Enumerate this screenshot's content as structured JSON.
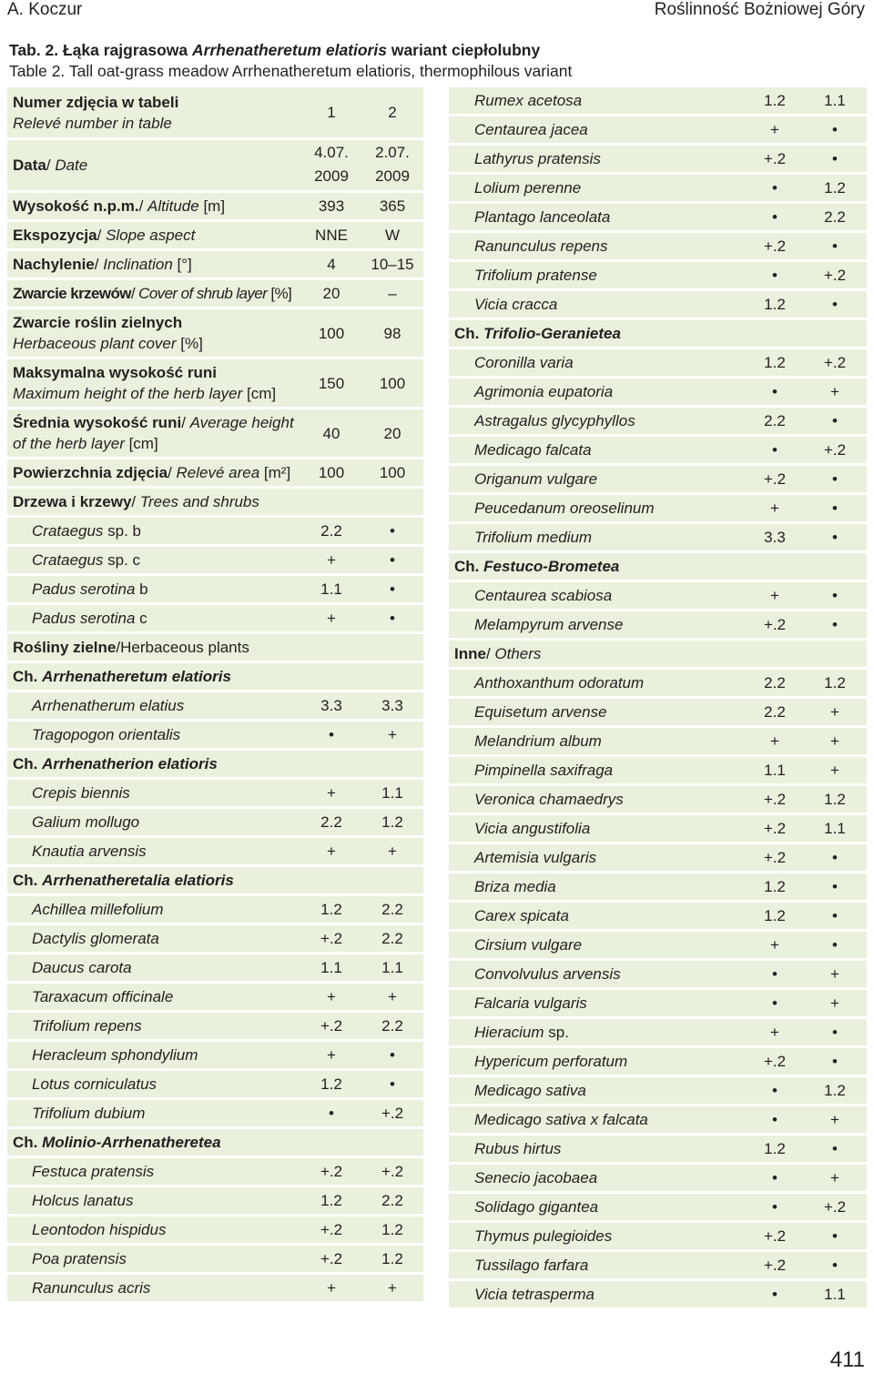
{
  "header": {
    "author": "A. Koczur",
    "journal": "Roślinność Bożniowej Góry"
  },
  "caption": {
    "pl_prefix": "Tab. 2. Łąka rajgrasowa ",
    "pl_species": "Arrhenatheretum elatioris",
    "pl_suffix": " wariant ciepłolubny",
    "en": "Table 2. Tall oat-grass meadow Arrhenatheretum elatioris, thermophilous variant"
  },
  "left": {
    "relevé": {
      "pl": "Numer zdjęcia w tabeli",
      "en": "Relevé number in table",
      "v1": "1",
      "v2": "2"
    },
    "date": {
      "pl": "Data",
      "en": "Date",
      "d1a": "4.07.",
      "d2a": "2.07.",
      "d1b": "2009",
      "d2b": "2009"
    },
    "altitude": {
      "pl": "Wysokość n.p.m.",
      "en": "Altitude",
      "unit": " [m]",
      "v1": "393",
      "v2": "365"
    },
    "aspect": {
      "pl": "Ekspozycja",
      "en": "Slope aspect",
      "v1": "NNE",
      "v2": "W"
    },
    "inclination": {
      "pl": "Nachylenie",
      "en": "Inclination",
      "unit": " [°]",
      "v1": "4",
      "v2": "10–15"
    },
    "shrub": {
      "pl": "Zwarcie krzewów",
      "en": "Cover of shrub layer",
      "unit": " [%]",
      "v1": "20",
      "v2": "–"
    },
    "herb_cover": {
      "pl": "Zwarcie roślin zielnych",
      "en": "Herbaceous plant cover",
      "unit": " [%]",
      "v1": "100",
      "v2": "98"
    },
    "max_height": {
      "pl": "Maksymalna wysokość runi",
      "en": "Maximum height of the herb layer",
      "unit": " [cm]",
      "v1": "150",
      "v2": "100"
    },
    "avg_height": {
      "pl": "Średnia wysokość runi",
      "en1": "Average height",
      "en2": "of the herb layer",
      "unit": " [cm]",
      "v1": "40",
      "v2": "20"
    },
    "area": {
      "pl": "Powierzchnia zdjęcia",
      "en": "Relevé area",
      "unit": " [m²]",
      "v1": "100",
      "v2": "100"
    },
    "trees": {
      "pl": "Drzewa i krzewy",
      "en": "Trees and shrubs"
    },
    "tree_species": [
      {
        "name": "Crataegus",
        "suffix": " sp. b",
        "v1": "2.2",
        "v2": "•"
      },
      {
        "name": "Crataegus",
        "suffix": " sp. c",
        "v1": "+",
        "v2": "•"
      },
      {
        "name": "Padus serotina",
        "suffix": " b",
        "v1": "1.1",
        "v2": "•"
      },
      {
        "name": "Padus serotina",
        "suffix": " c",
        "v1": "+",
        "v2": "•"
      }
    ],
    "herbaceous": {
      "pl": "Rośliny zielne",
      "en": "Herbaceous plants"
    },
    "groups": [
      {
        "prefix": "Ch. ",
        "name": "Arrhenatheretum elatioris",
        "species": [
          {
            "name": "Arrhenatherum elatius",
            "v1": "3.3",
            "v2": "3.3"
          },
          {
            "name": "Tragopogon orientalis",
            "v1": "•",
            "v2": "+"
          }
        ]
      },
      {
        "prefix": "Ch. ",
        "name": "Arrhenatherion elatioris",
        "species": [
          {
            "name": "Crepis biennis",
            "v1": "+",
            "v2": "1.1"
          },
          {
            "name": "Galium mollugo",
            "v1": "2.2",
            "v2": "1.2"
          },
          {
            "name": "Knautia arvensis",
            "v1": "+",
            "v2": "+"
          }
        ]
      },
      {
        "prefix": "Ch. ",
        "name": "Arrhenatheretalia elatioris",
        "species": [
          {
            "name": "Achillea millefolium",
            "v1": "1.2",
            "v2": "2.2"
          },
          {
            "name": "Dactylis glomerata",
            "v1": "+.2",
            "v2": "2.2"
          },
          {
            "name": "Daucus carota",
            "v1": "1.1",
            "v2": "1.1"
          },
          {
            "name": "Taraxacum officinale",
            "v1": "+",
            "v2": "+"
          },
          {
            "name": "Trifolium repens",
            "v1": "+.2",
            "v2": "2.2"
          },
          {
            "name": "Heracleum sphondylium",
            "v1": "+",
            "v2": "•"
          },
          {
            "name": "Lotus corniculatus",
            "v1": "1.2",
            "v2": "•"
          },
          {
            "name": "Trifolium dubium",
            "v1": "•",
            "v2": "+.2"
          }
        ]
      },
      {
        "prefix": "Ch. ",
        "name": "Molinio-Arrhenatheretea",
        "species": [
          {
            "name": "Festuca pratensis",
            "v1": "+.2",
            "v2": "+.2"
          },
          {
            "name": "Holcus lanatus",
            "v1": "1.2",
            "v2": "2.2"
          },
          {
            "name": "Leontodon hispidus",
            "v1": "+.2",
            "v2": "1.2"
          },
          {
            "name": "Poa pratensis",
            "v1": "+.2",
            "v2": "1.2"
          },
          {
            "name": "Ranunculus acris",
            "v1": "+",
            "v2": "+"
          }
        ]
      }
    ]
  },
  "right": {
    "cont_species": [
      {
        "name": "Rumex acetosa",
        "v1": "1.2",
        "v2": "1.1"
      },
      {
        "name": "Centaurea jacea",
        "v1": "+",
        "v2": "•"
      },
      {
        "name": "Lathyrus pratensis",
        "v1": "+.2",
        "v2": "•"
      },
      {
        "name": "Lolium perenne",
        "v1": "•",
        "v2": "1.2"
      },
      {
        "name": "Plantago lanceolata",
        "v1": "•",
        "v2": "2.2"
      },
      {
        "name": "Ranunculus repens",
        "v1": "+.2",
        "v2": "•"
      },
      {
        "name": "Trifolium pratense",
        "v1": "•",
        "v2": "+.2"
      },
      {
        "name": "Vicia cracca",
        "v1": "1.2",
        "v2": "•"
      }
    ],
    "groups": [
      {
        "prefix": "Ch. ",
        "name": "Trifolio-Geranietea",
        "species": [
          {
            "name": "Coronilla varia",
            "v1": "1.2",
            "v2": "+.2"
          },
          {
            "name": "Agrimonia eupatoria",
            "v1": "•",
            "v2": "+"
          },
          {
            "name": "Astragalus glycyphyllos",
            "v1": "2.2",
            "v2": "•"
          },
          {
            "name": "Medicago falcata",
            "v1": "•",
            "v2": "+.2"
          },
          {
            "name": "Origanum vulgare",
            "v1": "+.2",
            "v2": "•"
          },
          {
            "name": "Peucedanum oreoselinum",
            "v1": "+",
            "v2": "•"
          },
          {
            "name": "Trifolium medium",
            "v1": "3.3",
            "v2": "•"
          }
        ]
      },
      {
        "prefix": "Ch. ",
        "name": "Festuco-Brometea",
        "species": [
          {
            "name": "Centaurea scabiosa",
            "v1": "+",
            "v2": "•"
          },
          {
            "name": "Melampyrum arvense",
            "v1": "+.2",
            "v2": "•"
          }
        ]
      }
    ],
    "others": {
      "pl": "Inne",
      "en": "Others"
    },
    "other_species": [
      {
        "name": "Anthoxanthum odoratum",
        "v1": "2.2",
        "v2": "1.2"
      },
      {
        "name": "Equisetum arvense",
        "v1": "2.2",
        "v2": "+"
      },
      {
        "name": "Melandrium album",
        "v1": "+",
        "v2": "+"
      },
      {
        "name": "Pimpinella saxifraga",
        "v1": "1.1",
        "v2": "+"
      },
      {
        "name": "Veronica chamaedrys",
        "v1": "+.2",
        "v2": "1.2"
      },
      {
        "name": "Vicia angustifolia",
        "v1": "+.2",
        "v2": "1.1"
      },
      {
        "name": "Artemisia vulgaris",
        "v1": "+.2",
        "v2": "•"
      },
      {
        "name": "Briza media",
        "v1": "1.2",
        "v2": "•"
      },
      {
        "name": "Carex spicata",
        "v1": "1.2",
        "v2": "•"
      },
      {
        "name": "Cirsium vulgare",
        "v1": "+",
        "v2": "•"
      },
      {
        "name": "Convolvulus arvensis",
        "v1": "•",
        "v2": "+"
      },
      {
        "name": "Falcaria vulgaris",
        "v1": "•",
        "v2": "+"
      },
      {
        "name": "Hieracium",
        "suffix": " sp.",
        "v1": "+",
        "v2": "•"
      },
      {
        "name": "Hypericum perforatum",
        "v1": "+.2",
        "v2": "•"
      },
      {
        "name": "Medicago sativa",
        "v1": "•",
        "v2": "1.2"
      },
      {
        "name": "Medicago sativa x falcata",
        "v1": "•",
        "v2": "+"
      },
      {
        "name": "Rubus hirtus",
        "v1": "1.2",
        "v2": "•"
      },
      {
        "name": "Senecio jacobaea",
        "v1": "•",
        "v2": "+"
      },
      {
        "name": "Solidago gigantea",
        "v1": "•",
        "v2": "+.2"
      },
      {
        "name": "Thymus pulegioides",
        "v1": "+.2",
        "v2": "•"
      },
      {
        "name": "Tussilago farfara",
        "v1": "+.2",
        "v2": "•"
      },
      {
        "name": "Vicia tetrasperma",
        "v1": "•",
        "v2": "1.1"
      }
    ]
  },
  "page_number": "411",
  "colors": {
    "row_bg": "#e9f0db",
    "text": "#231f20"
  }
}
